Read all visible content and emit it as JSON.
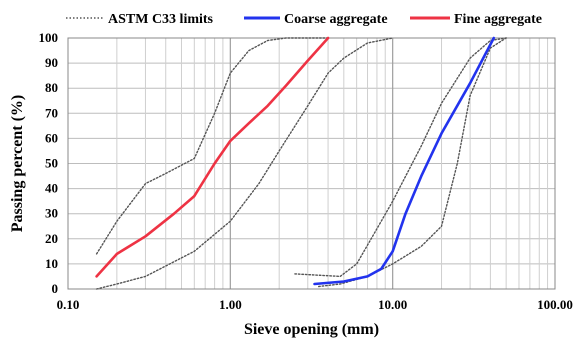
{
  "chart_data": {
    "type": "line",
    "title": "",
    "xlabel": "Sieve opening (mm)",
    "ylabel": "Passing percent (%)",
    "x_scale": "log",
    "xlim": [
      0.1,
      100
    ],
    "ylim": [
      0,
      100
    ],
    "x_ticks": [
      "0.10",
      "1.00",
      "10.00",
      "100.00"
    ],
    "y_ticks": [
      "0",
      "10",
      "20",
      "30",
      "40",
      "50",
      "60",
      "70",
      "80",
      "90",
      "100"
    ],
    "grid": true,
    "legend_position": "top",
    "legend": [
      "ASTM C33 limits",
      "Coarse aggregate",
      "Fine aggregate"
    ],
    "series": [
      {
        "name": "ASTM C33 limits",
        "color": "#555555",
        "style": "dotted",
        "segments": [
          {
            "x": [
              0.15,
              0.2,
              0.3,
              0.4,
              0.6,
              0.8,
              1.0,
              1.3,
              1.7,
              2.2,
              3.0,
              4.0
            ],
            "y": [
              14,
              27,
              42,
              46,
              52,
              70,
              86,
              95,
              99,
              100,
              100,
              100
            ]
          },
          {
            "x": [
              0.15,
              0.2,
              0.3,
              0.6,
              1.0,
              1.5,
              2.0,
              3.0,
              4.0,
              5.0,
              7.0,
              10.0
            ],
            "y": [
              0,
              2,
              5,
              15,
              27,
              42,
              55,
              73,
              86,
              92,
              98,
              100
            ]
          },
          {
            "x": [
              2.5,
              4.75,
              6.0,
              8.0,
              10.0,
              15.0,
              20.0,
              30.0,
              40.0,
              50.0
            ],
            "y": [
              6,
              5,
              10,
              24,
              35,
              57,
              74,
              92,
              99,
              100
            ]
          },
          {
            "x": [
              3.5,
              4.75,
              7.0,
              10.0,
              15.0,
              20.0,
              25.0,
              30.0,
              40.0,
              50.0
            ],
            "y": [
              1,
              2,
              5,
              10,
              17,
              25,
              50,
              77,
              96,
              100
            ]
          }
        ]
      },
      {
        "name": "Coarse aggregate",
        "color": "#2233ee",
        "style": "solid",
        "x": [
          3.3,
          5.0,
          7.0,
          8.5,
          10.0,
          12.0,
          15.0,
          20.0,
          30.0,
          42.0
        ],
        "y": [
          2,
          3,
          5,
          8,
          15,
          30,
          45,
          62,
          82,
          100
        ]
      },
      {
        "name": "Fine aggregate",
        "color": "#ee3344",
        "style": "solid",
        "x": [
          0.15,
          0.2,
          0.3,
          0.45,
          0.6,
          0.8,
          1.0,
          1.3,
          1.7,
          2.2,
          3.0,
          4.0
        ],
        "y": [
          5,
          14,
          21,
          30,
          37,
          50,
          59,
          66,
          73,
          81,
          91,
          100
        ]
      }
    ]
  }
}
